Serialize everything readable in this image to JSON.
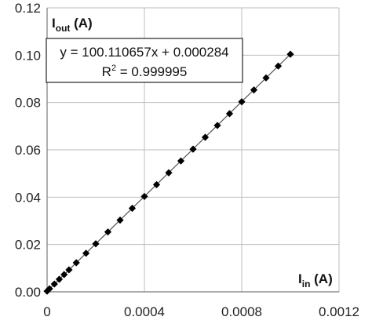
{
  "chart_data": {
    "type": "scatter",
    "title": "",
    "xlabel": {
      "main": "I",
      "sub": "in",
      "unit": " (A)"
    },
    "ylabel": {
      "main": "I",
      "sub": "out",
      "unit": " (A)"
    },
    "xlim": [
      0,
      0.0012
    ],
    "ylim": [
      0,
      0.12
    ],
    "x_ticks": [
      {
        "value": 0,
        "label": "0"
      },
      {
        "value": 0.0004,
        "label": "0.0004"
      },
      {
        "value": 0.0008,
        "label": "0.0008"
      },
      {
        "value": 0.0012,
        "label": "0.0012"
      }
    ],
    "y_ticks": [
      {
        "value": 0,
        "label": "0.00"
      },
      {
        "value": 0.02,
        "label": "0.02"
      },
      {
        "value": 0.04,
        "label": "0.04"
      },
      {
        "value": 0.06,
        "label": "0.06"
      },
      {
        "value": 0.08,
        "label": "0.08"
      },
      {
        "value": 0.1,
        "label": "0.10"
      },
      {
        "value": 0.12,
        "label": "0.12"
      }
    ],
    "grid": {
      "x": true,
      "y": true
    },
    "marker": "diamond",
    "series": [
      {
        "x": [
          0,
          1e-05,
          3e-05,
          5e-05,
          7e-05,
          9e-05,
          0.00012,
          0.00016,
          0.0002,
          0.00025,
          0.0003,
          0.00035,
          0.0004,
          0.00045,
          0.0005,
          0.00055,
          0.0006,
          0.00065,
          0.0007,
          0.00075,
          0.0008,
          0.00085,
          0.0009,
          0.00095,
          0.001
        ],
        "y": [
          0.0003,
          0.0013,
          0.0033,
          0.0053,
          0.0073,
          0.0093,
          0.0123,
          0.0163,
          0.0203,
          0.0253,
          0.0303,
          0.0353,
          0.0403,
          0.0453,
          0.0503,
          0.0553,
          0.0603,
          0.0653,
          0.0703,
          0.0753,
          0.0803,
          0.0853,
          0.0904,
          0.0954,
          0.1004
        ],
        "color": "#000000"
      }
    ],
    "trendline": {
      "slope": 100.110657,
      "intercept": 0.000284,
      "color": "#555555"
    },
    "annotation": {
      "equation": "y = 100.110657x + 0.000284",
      "r2_prefix": "R",
      "r2_sup": "2",
      "r2_value": " = 0.999995"
    }
  }
}
